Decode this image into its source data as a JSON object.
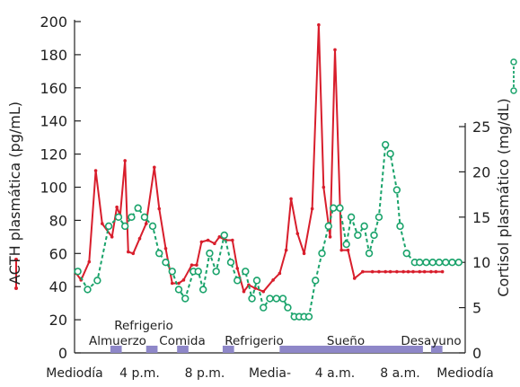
{
  "chart_data": {
    "type": "line",
    "y_left_label": "ACTH plasmática (pg/mL)",
    "y_right_label": "Cortisol plasmático (mg/dL)",
    "y_left_range": [
      0,
      200
    ],
    "y_left_ticks": [
      "0",
      "20",
      "40",
      "60",
      "80",
      "100",
      "120",
      "140",
      "160",
      "180",
      "200"
    ],
    "y_right_range": [
      0,
      25
    ],
    "y_right_ticks": [
      "0",
      "5",
      "10",
      "15",
      "20",
      "25"
    ],
    "x_range": [
      12,
      36
    ],
    "x_tick_labels": [
      {
        "x": 12,
        "label": "Mediodía"
      },
      {
        "x": 16,
        "label": "4 p.m."
      },
      {
        "x": 20,
        "label": "8 p.m."
      },
      {
        "x": 24,
        "label": "Media-"
      },
      {
        "x": 28,
        "label": "4 a.m."
      },
      {
        "x": 32,
        "label": "8 a.m."
      },
      {
        "x": 36,
        "label": "Mediodía"
      }
    ],
    "colors": {
      "acth": "#d81e2c",
      "cortisol": "#1aa36b",
      "meal_bar": "#8e87c8"
    },
    "series": [
      {
        "name": "ACTH plasmática",
        "axis": "left",
        "style": "solid",
        "x": [
          12.1,
          12.4,
          12.9,
          13.3,
          13.7,
          14.3,
          14.6,
          14.8,
          15.1,
          15.3,
          15.6,
          16.0,
          16.4,
          16.9,
          17.2,
          17.6,
          18.0,
          18.4,
          18.7,
          19.2,
          19.5,
          19.8,
          20.2,
          20.6,
          20.9,
          21.3,
          21.7,
          22.0,
          22.4,
          22.7,
          23.1,
          23.6,
          24.2,
          24.6,
          25.0,
          25.3,
          25.7,
          26.1,
          26.6,
          27.0,
          27.3,
          27.7,
          28.0,
          28.4,
          28.8,
          29.2,
          29.7,
          30.3,
          30.7,
          31.1,
          31.4,
          31.8,
          32.2,
          32.5,
          32.8,
          33.2,
          33.5,
          33.9,
          34.2,
          34.6
        ],
        "values": [
          48,
          44,
          55,
          110,
          78,
          70,
          88,
          83,
          116,
          61,
          60,
          69,
          78,
          112,
          87,
          63,
          42,
          42,
          44,
          53,
          53,
          67,
          68,
          66,
          70,
          68,
          68,
          51,
          37,
          41,
          39,
          37,
          44,
          48,
          62,
          93,
          72,
          60,
          87,
          198,
          100,
          70,
          183,
          62,
          62,
          45,
          49,
          49,
          49,
          49,
          49,
          49,
          49,
          49,
          49,
          49,
          49,
          49,
          49,
          49
        ]
      },
      {
        "name": "Cortisol plasmático",
        "axis": "right",
        "style": "dashed",
        "x": [
          12.2,
          12.8,
          13.4,
          14.1,
          14.7,
          15.1,
          15.5,
          15.9,
          16.3,
          16.8,
          17.2,
          17.6,
          18.0,
          18.4,
          18.8,
          19.3,
          19.6,
          19.9,
          20.3,
          20.7,
          21.2,
          21.6,
          22.0,
          22.5,
          22.9,
          23.2,
          23.6,
          24.0,
          24.4,
          24.8,
          25.1,
          25.5,
          25.8,
          26.1,
          26.4,
          26.8,
          27.2,
          27.6,
          27.9,
          28.3,
          28.7,
          29.0,
          29.4,
          29.8,
          30.1,
          30.4,
          30.7,
          31.1,
          31.4,
          31.8,
          32.0,
          32.4,
          32.9,
          33.2,
          33.6,
          34.0,
          34.4,
          34.8,
          35.2,
          35.6
        ],
        "values": [
          9,
          7,
          8,
          14,
          15,
          14,
          15,
          16,
          15,
          14,
          11,
          10,
          9,
          7,
          6,
          9,
          9,
          7,
          11,
          9,
          13,
          10,
          8,
          9,
          6,
          8,
          5,
          6,
          6,
          6,
          5,
          4,
          4,
          4,
          4,
          8,
          11,
          14,
          16,
          16,
          12,
          15,
          13,
          14,
          11,
          13,
          15,
          23,
          22,
          18,
          14,
          11,
          10,
          10,
          10,
          10,
          10,
          10,
          10,
          10
        ]
      }
    ],
    "meal_periods": [
      {
        "label": "Almuerzo",
        "x_start": 14.2,
        "x_end": 14.9
      },
      {
        "label": "Refrigerio",
        "x_start": 16.4,
        "x_end": 17.1
      },
      {
        "label": "Comida",
        "x_start": 18.3,
        "x_end": 19.0
      },
      {
        "label": "Refrigerio",
        "x_start": 21.1,
        "x_end": 21.8
      },
      {
        "label": "Sueño",
        "x_start": 24.6,
        "x_end": 33.4
      },
      {
        "label": "Desayuno",
        "x_start": 33.9,
        "x_end": 34.6
      }
    ]
  }
}
